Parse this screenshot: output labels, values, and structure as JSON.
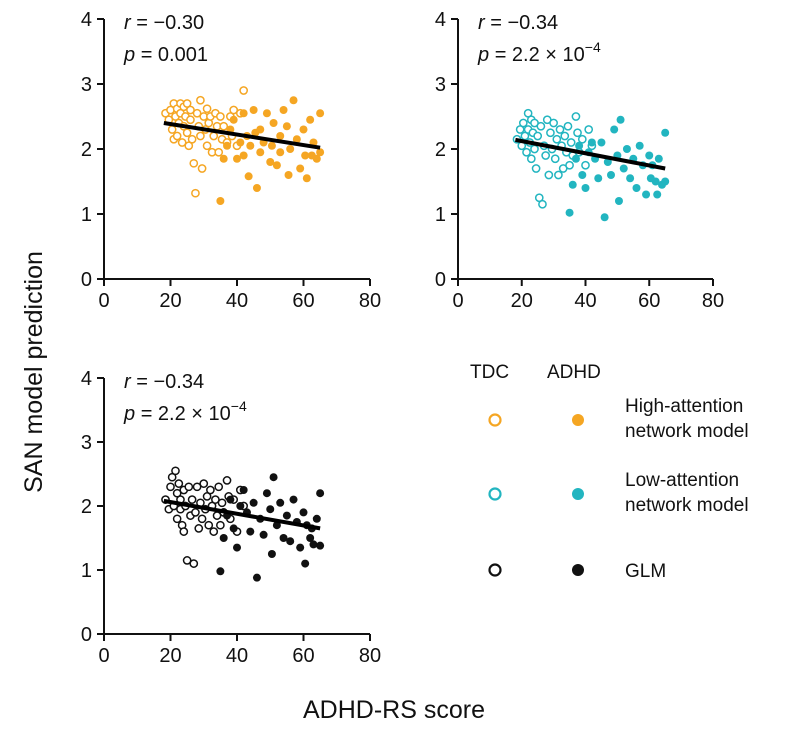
{
  "figure": {
    "ylabel": "SAN model prediction",
    "xlabel": "ADHD-RS score"
  },
  "legend": {
    "col_tdc": "TDC",
    "col_adhd": "ADHD",
    "rows": [
      {
        "label_line1": "High-attention",
        "label_line2": "network model",
        "color": "#f5a623"
      },
      {
        "label_line1": "Low-attention",
        "label_line2": "network model",
        "color": "#22b5c0"
      },
      {
        "label_line1": "GLM",
        "label_line2": "",
        "color": "#111111"
      }
    ]
  },
  "chart_data": [
    {
      "type": "scatter",
      "panel": "High-attention network model",
      "color": "#f5a623",
      "r_prefix": "r",
      "r_value": "= −0.30",
      "p_prefix": "p",
      "p_value": "= 0.001",
      "p_exp": "",
      "xlim": [
        0,
        80
      ],
      "ylim": [
        0,
        4
      ],
      "xticks": [
        "0",
        "20",
        "40",
        "60",
        "80"
      ],
      "yticks": [
        "0",
        "1",
        "2",
        "3",
        "4"
      ],
      "fit_line": [
        [
          18,
          2.4
        ],
        [
          65,
          2.02
        ]
      ],
      "series": [
        {
          "name": "TDC",
          "marker": "open",
          "points": [
            [
              18.5,
              2.55
            ],
            [
              19.5,
              2.45
            ],
            [
              20,
              2.6
            ],
            [
              20.5,
              2.3
            ],
            [
              21,
              2.7
            ],
            [
              21,
              2.15
            ],
            [
              21.5,
              2.5
            ],
            [
              22,
              2.62
            ],
            [
              22,
              2.2
            ],
            [
              22.5,
              2.4
            ],
            [
              23,
              2.7
            ],
            [
              23,
              2.55
            ],
            [
              23.5,
              2.1
            ],
            [
              24,
              2.65
            ],
            [
              24,
              2.35
            ],
            [
              24.5,
              2.5
            ],
            [
              25,
              2.25
            ],
            [
              25,
              2.7
            ],
            [
              25.5,
              2.05
            ],
            [
              26,
              2.45
            ],
            [
              26,
              2.6
            ],
            [
              26.5,
              2.15
            ],
            [
              27,
              1.78
            ],
            [
              27.5,
              1.32
            ],
            [
              28,
              2.55
            ],
            [
              28.5,
              2.35
            ],
            [
              29,
              2.75
            ],
            [
              29,
              2.2
            ],
            [
              29.5,
              1.7
            ],
            [
              30,
              2.5
            ],
            [
              30.5,
              2.3
            ],
            [
              31,
              2.62
            ],
            [
              31,
              2.05
            ],
            [
              31.5,
              2.4
            ],
            [
              32,
              2.5
            ],
            [
              32.5,
              1.95
            ],
            [
              33,
              2.2
            ],
            [
              33.5,
              2.55
            ],
            [
              34,
              2.35
            ],
            [
              34.5,
              1.95
            ],
            [
              35,
              2.5
            ],
            [
              35.5,
              2.15
            ],
            [
              36,
              2.35
            ],
            [
              37,
              2.1
            ],
            [
              38,
              2.5
            ],
            [
              38.5,
              2.2
            ],
            [
              39,
              2.6
            ],
            [
              40,
              2.05
            ],
            [
              41,
              2.55
            ],
            [
              42,
              2.9
            ]
          ]
        },
        {
          "name": "ADHD",
          "marker": "filled",
          "points": [
            [
              35,
              1.2
            ],
            [
              36,
              1.85
            ],
            [
              37,
              2.05
            ],
            [
              38,
              2.3
            ],
            [
              39,
              2.45
            ],
            [
              40,
              1.85
            ],
            [
              41,
              2.1
            ],
            [
              42,
              2.55
            ],
            [
              42,
              1.9
            ],
            [
              43,
              2.2
            ],
            [
              43.5,
              1.58
            ],
            [
              44,
              2.05
            ],
            [
              45,
              2.6
            ],
            [
              45.5,
              2.25
            ],
            [
              46,
              1.4
            ],
            [
              47,
              2.3
            ],
            [
              47,
              1.95
            ],
            [
              48,
              2.1
            ],
            [
              49,
              2.55
            ],
            [
              50,
              1.8
            ],
            [
              50.5,
              2.05
            ],
            [
              51,
              2.4
            ],
            [
              52,
              1.75
            ],
            [
              53,
              2.2
            ],
            [
              53,
              1.95
            ],
            [
              54,
              2.6
            ],
            [
              55,
              2.35
            ],
            [
              55.5,
              1.6
            ],
            [
              56,
              2.0
            ],
            [
              57,
              2.75
            ],
            [
              58,
              2.15
            ],
            [
              59,
              1.7
            ],
            [
              60,
              2.3
            ],
            [
              60.5,
              1.9
            ],
            [
              61,
              1.55
            ],
            [
              62,
              2.45
            ],
            [
              62.5,
              1.9
            ],
            [
              63,
              2.1
            ],
            [
              64,
              1.85
            ],
            [
              65,
              2.55
            ],
            [
              65,
              1.95
            ]
          ]
        }
      ]
    },
    {
      "type": "scatter",
      "panel": "Low-attention network model",
      "color": "#22b5c0",
      "r_prefix": "r",
      "r_value": "= −0.34",
      "p_prefix": "p",
      "p_value": "= 2.2 × 10",
      "p_exp": "−4",
      "xlim": [
        0,
        80
      ],
      "ylim": [
        0,
        4
      ],
      "xticks": [
        "0",
        "20",
        "40",
        "60",
        "80"
      ],
      "yticks": [
        "0",
        "1",
        "2",
        "3",
        "4"
      ],
      "fit_line": [
        [
          18,
          2.14
        ],
        [
          65,
          1.7
        ]
      ],
      "series": [
        {
          "name": "TDC",
          "marker": "open",
          "points": [
            [
              18.5,
              2.15
            ],
            [
              19.5,
              2.3
            ],
            [
              20,
              2.05
            ],
            [
              20.5,
              2.4
            ],
            [
              21,
              2.2
            ],
            [
              21.5,
              1.95
            ],
            [
              22,
              2.55
            ],
            [
              22,
              2.3
            ],
            [
              22.5,
              2.1
            ],
            [
              23,
              2.45
            ],
            [
              23,
              1.85
            ],
            [
              23.5,
              2.25
            ],
            [
              24,
              2.0
            ],
            [
              24,
              2.4
            ],
            [
              24.5,
              1.7
            ],
            [
              25,
              2.2
            ],
            [
              25.5,
              1.25
            ],
            [
              26,
              2.35
            ],
            [
              26.5,
              1.15
            ],
            [
              27,
              2.05
            ],
            [
              27.5,
              1.9
            ],
            [
              28,
              2.45
            ],
            [
              28.5,
              1.6
            ],
            [
              29,
              2.25
            ],
            [
              29.5,
              2.0
            ],
            [
              30,
              2.4
            ],
            [
              30.5,
              1.85
            ],
            [
              31,
              2.15
            ],
            [
              31.5,
              1.6
            ],
            [
              32,
              2.3
            ],
            [
              32.5,
              2.05
            ],
            [
              33,
              1.7
            ],
            [
              33.5,
              2.2
            ],
            [
              34,
              1.95
            ],
            [
              34.5,
              2.35
            ],
            [
              35,
              1.75
            ],
            [
              35.5,
              2.1
            ],
            [
              36,
              1.9
            ],
            [
              37,
              2.5
            ],
            [
              37.5,
              2.25
            ],
            [
              38,
              1.95
            ],
            [
              39,
              2.15
            ],
            [
              40,
              1.75
            ],
            [
              41,
              2.3
            ],
            [
              42,
              2.05
            ]
          ]
        },
        {
          "name": "ADHD",
          "marker": "filled",
          "points": [
            [
              35,
              1.02
            ],
            [
              36,
              1.45
            ],
            [
              37,
              1.85
            ],
            [
              38,
              2.05
            ],
            [
              39,
              1.6
            ],
            [
              40,
              1.4
            ],
            [
              41,
              1.95
            ],
            [
              42,
              2.1
            ],
            [
              43,
              1.85
            ],
            [
              44,
              1.55
            ],
            [
              45,
              2.1
            ],
            [
              46,
              0.95
            ],
            [
              47,
              1.8
            ],
            [
              48,
              1.6
            ],
            [
              49,
              2.3
            ],
            [
              50,
              1.9
            ],
            [
              50.5,
              1.2
            ],
            [
              51,
              2.45
            ],
            [
              52,
              1.7
            ],
            [
              53,
              2.0
            ],
            [
              54,
              1.55
            ],
            [
              55,
              1.85
            ],
            [
              56,
              1.4
            ],
            [
              57,
              2.05
            ],
            [
              58,
              1.75
            ],
            [
              59,
              1.3
            ],
            [
              60,
              1.9
            ],
            [
              60.5,
              1.55
            ],
            [
              61,
              1.75
            ],
            [
              62,
              1.5
            ],
            [
              62.5,
              1.3
            ],
            [
              63,
              1.85
            ],
            [
              64,
              1.45
            ],
            [
              65,
              2.25
            ],
            [
              65,
              1.5
            ]
          ]
        }
      ]
    },
    {
      "type": "scatter",
      "panel": "GLM",
      "color": "#111111",
      "r_prefix": "r",
      "r_value": "= −0.34",
      "p_prefix": "p",
      "p_value": "= 2.2 × 10",
      "p_exp": "−4",
      "xlim": [
        0,
        80
      ],
      "ylim": [
        0,
        4
      ],
      "xticks": [
        "0",
        "20",
        "40",
        "60",
        "80"
      ],
      "yticks": [
        "0",
        "1",
        "2",
        "3",
        "4"
      ],
      "fit_line": [
        [
          18,
          2.08
        ],
        [
          65,
          1.65
        ]
      ],
      "series": [
        {
          "name": "TDC",
          "marker": "open",
          "points": [
            [
              18.5,
              2.1
            ],
            [
              19.5,
              1.95
            ],
            [
              20,
              2.3
            ],
            [
              20.5,
              2.45
            ],
            [
              21,
              2.0
            ],
            [
              21.5,
              2.55
            ],
            [
              22,
              1.8
            ],
            [
              22,
              2.2
            ],
            [
              22.5,
              2.35
            ],
            [
              23,
              1.95
            ],
            [
              23,
              2.1
            ],
            [
              23.5,
              1.7
            ],
            [
              24,
              2.25
            ],
            [
              24,
              1.6
            ],
            [
              24.5,
              2.0
            ],
            [
              25,
              1.15
            ],
            [
              25.5,
              2.3
            ],
            [
              26,
              1.85
            ],
            [
              26.5,
              2.1
            ],
            [
              27,
              1.1
            ],
            [
              27.5,
              1.9
            ],
            [
              28,
              2.3
            ],
            [
              28.5,
              1.65
            ],
            [
              29,
              2.05
            ],
            [
              29.5,
              1.8
            ],
            [
              30,
              2.35
            ],
            [
              30.5,
              1.95
            ],
            [
              31,
              2.15
            ],
            [
              31.5,
              1.7
            ],
            [
              32,
              2.25
            ],
            [
              32.5,
              2.0
            ],
            [
              33,
              1.6
            ],
            [
              33.5,
              2.1
            ],
            [
              34,
              1.85
            ],
            [
              34.5,
              2.3
            ],
            [
              35,
              1.7
            ],
            [
              35.5,
              2.05
            ],
            [
              36,
              1.9
            ],
            [
              37,
              2.4
            ],
            [
              37.5,
              2.15
            ],
            [
              38,
              1.8
            ],
            [
              39,
              2.1
            ],
            [
              40,
              1.6
            ],
            [
              41,
              2.25
            ],
            [
              42,
              2.0
            ]
          ]
        },
        {
          "name": "ADHD",
          "marker": "filled",
          "points": [
            [
              35,
              0.98
            ],
            [
              36,
              1.5
            ],
            [
              37,
              1.85
            ],
            [
              38,
              2.1
            ],
            [
              39,
              1.65
            ],
            [
              40,
              1.35
            ],
            [
              41,
              2.0
            ],
            [
              42,
              2.25
            ],
            [
              43,
              1.9
            ],
            [
              44,
              1.6
            ],
            [
              45,
              2.05
            ],
            [
              46,
              0.88
            ],
            [
              47,
              1.8
            ],
            [
              48,
              1.55
            ],
            [
              49,
              2.2
            ],
            [
              50,
              1.95
            ],
            [
              50.5,
              1.25
            ],
            [
              51,
              2.45
            ],
            [
              52,
              1.7
            ],
            [
              53,
              2.05
            ],
            [
              54,
              1.5
            ],
            [
              55,
              1.85
            ],
            [
              56,
              1.45
            ],
            [
              57,
              2.1
            ],
            [
              58,
              1.75
            ],
            [
              59,
              1.35
            ],
            [
              60,
              1.9
            ],
            [
              60.5,
              1.1
            ],
            [
              61,
              1.7
            ],
            [
              62,
              1.5
            ],
            [
              62.5,
              1.65
            ],
            [
              63,
              1.4
            ],
            [
              64,
              1.8
            ],
            [
              65,
              2.2
            ],
            [
              65,
              1.38
            ]
          ]
        }
      ]
    }
  ]
}
